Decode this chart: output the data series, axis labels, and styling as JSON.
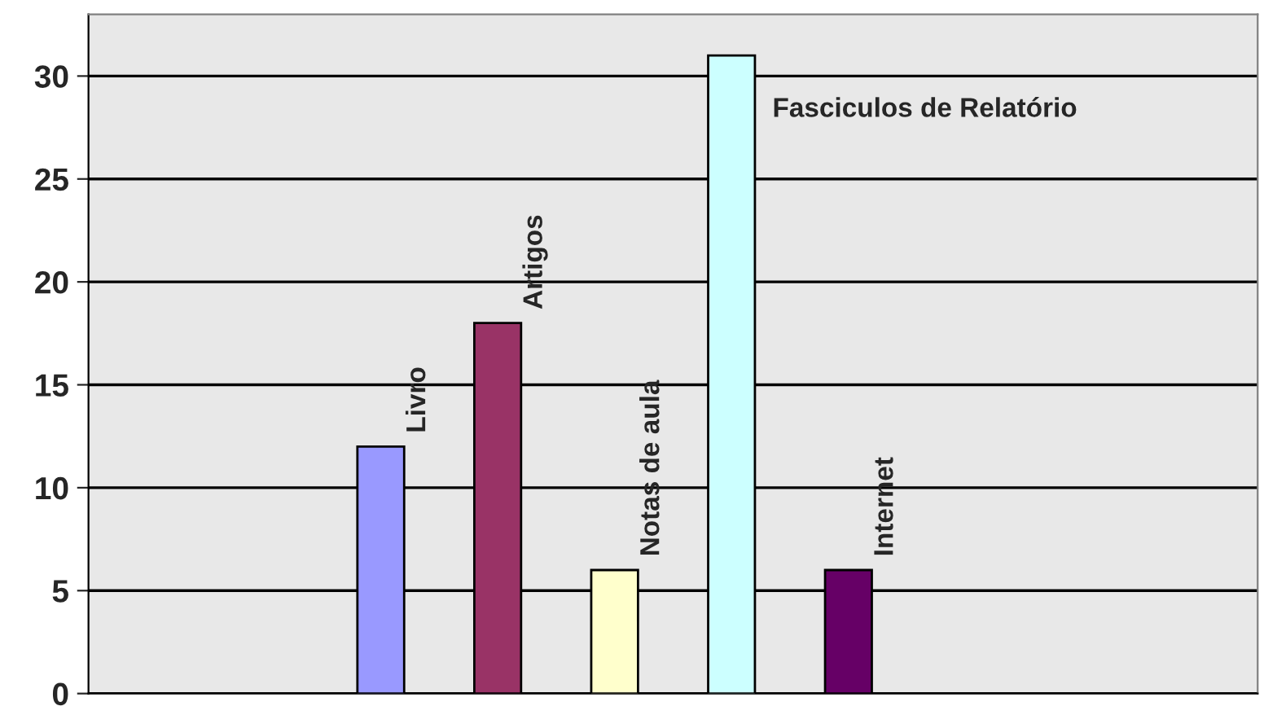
{
  "chart_data": {
    "type": "bar",
    "categories": [
      null,
      null,
      null,
      null,
      null,
      null,
      null,
      null,
      null,
      null
    ],
    "values": [
      null,
      null,
      12,
      18,
      6,
      31,
      6,
      null,
      null,
      null
    ],
    "colors": [
      null,
      null,
      "#9999ff",
      "#993366",
      "#ffffcc",
      "#ccffff",
      "#660066",
      null,
      null,
      null
    ],
    "annotations": [
      "Livro",
      "Artigos",
      "Notas de aula",
      "Fasciculos de Relatório",
      "Internet"
    ],
    "ylim": [
      0,
      33
    ],
    "yticks": [
      0,
      5,
      10,
      15,
      20,
      25,
      30
    ],
    "grid": "y"
  }
}
